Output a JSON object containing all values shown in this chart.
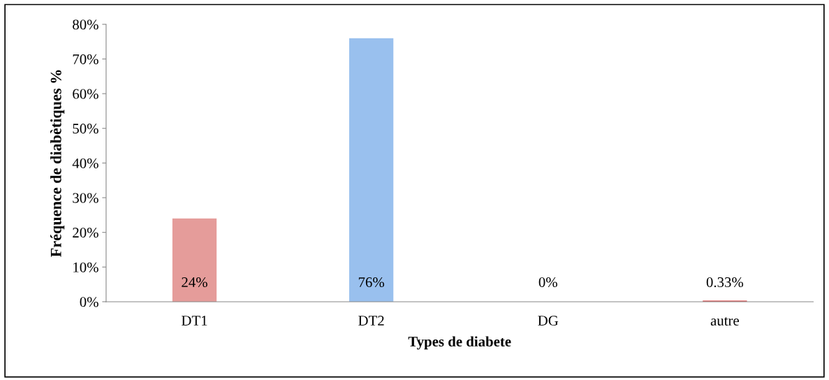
{
  "chart_data": {
    "type": "bar",
    "xlabel": "Types de diabete",
    "ylabel": "Fréquence de diabètiques %",
    "categories": [
      "DT1",
      "DT2",
      "DG",
      "autre"
    ],
    "values": [
      24,
      76,
      0,
      0.33
    ],
    "colors": [
      "#e59c9a",
      "#99c0ee",
      "#99c0ee",
      "#e06666"
    ],
    "value_labels": [
      "24%",
      "76%",
      "0%",
      "0.33%"
    ],
    "ylim": [
      0,
      80
    ],
    "yticks": [
      {
        "value": 0,
        "label": "0%"
      },
      {
        "value": 10,
        "label": "10%"
      },
      {
        "value": 20,
        "label": "20%"
      },
      {
        "value": 30,
        "label": "30%"
      },
      {
        "value": 40,
        "label": "40%"
      },
      {
        "value": 50,
        "label": "50%"
      },
      {
        "value": 60,
        "label": "60%"
      },
      {
        "value": 70,
        "label": "70%"
      },
      {
        "value": 80,
        "label": "80%"
      }
    ],
    "grid": false,
    "legend": false
  }
}
